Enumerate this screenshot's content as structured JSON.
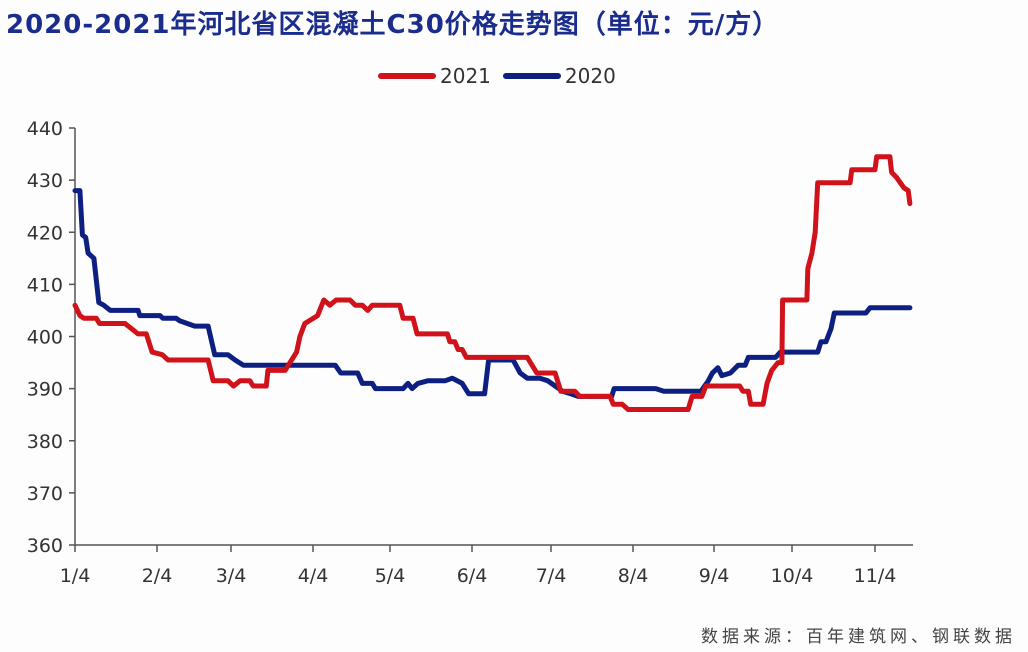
{
  "title": "2020-2021年河北省区混凝土C30价格走势图（单位：元/方）",
  "source_note": "数据来源：百年建筑网、钢联数据",
  "legend": [
    {
      "label": "2021",
      "color": "#d0121a"
    },
    {
      "label": "2020",
      "color": "#0d1f80"
    }
  ],
  "chart_data": {
    "type": "line",
    "title": "2020-2021年河北省区混凝土C30价格走势图（单位：元/方）",
    "xlabel": "",
    "ylabel": "元/方",
    "ylim": [
      360,
      440
    ],
    "yticks": [
      360,
      370,
      380,
      390,
      400,
      410,
      420,
      430,
      440
    ],
    "xticks": [
      "1/4",
      "2/4",
      "3/4",
      "4/4",
      "5/4",
      "6/4",
      "7/4",
      "8/4",
      "9/4",
      "10/4",
      "11/4"
    ],
    "x_note": "x is position in months from 1/4 (0 = 1/4, 10 = 11/4)",
    "xlim": [
      0,
      10.45
    ],
    "grid": false,
    "legend_position": "top",
    "series": [
      {
        "name": "2021",
        "color": "#d0121a",
        "points": [
          [
            0.0,
            406
          ],
          [
            0.06,
            404
          ],
          [
            0.11,
            403.5
          ],
          [
            0.26,
            403.5
          ],
          [
            0.3,
            402.5
          ],
          [
            0.61,
            402.5
          ],
          [
            0.77,
            400.5
          ],
          [
            0.87,
            400.5
          ],
          [
            0.94,
            397
          ],
          [
            1.07,
            396.5
          ],
          [
            1.15,
            395.5
          ],
          [
            1.69,
            395.5
          ],
          [
            1.76,
            391.5
          ],
          [
            1.96,
            391.5
          ],
          [
            2.03,
            390.5
          ],
          [
            2.11,
            391.5
          ],
          [
            2.23,
            391.5
          ],
          [
            2.27,
            390.5
          ],
          [
            2.43,
            390.5
          ],
          [
            2.45,
            393.5
          ],
          [
            2.66,
            393.5
          ],
          [
            2.72,
            395
          ],
          [
            2.8,
            397
          ],
          [
            2.84,
            400
          ],
          [
            2.9,
            402.5
          ],
          [
            3.06,
            404
          ],
          [
            3.14,
            407
          ],
          [
            3.22,
            406
          ],
          [
            3.3,
            407
          ],
          [
            3.48,
            407
          ],
          [
            3.55,
            406
          ],
          [
            3.64,
            406
          ],
          [
            3.71,
            405
          ],
          [
            3.77,
            406
          ],
          [
            4.12,
            406
          ],
          [
            4.16,
            403.5
          ],
          [
            4.28,
            403.5
          ],
          [
            4.33,
            400.5
          ],
          [
            4.7,
            400.5
          ],
          [
            4.73,
            399
          ],
          [
            4.79,
            399
          ],
          [
            4.83,
            397.5
          ],
          [
            4.88,
            397.5
          ],
          [
            4.93,
            396
          ],
          [
            5.7,
            396
          ],
          [
            5.82,
            393
          ],
          [
            6.05,
            393
          ],
          [
            6.12,
            389.5
          ],
          [
            6.29,
            389.5
          ],
          [
            6.35,
            388.5
          ],
          [
            6.72,
            388.5
          ],
          [
            6.76,
            387
          ],
          [
            6.87,
            387
          ],
          [
            6.94,
            386
          ],
          [
            7.68,
            386
          ],
          [
            7.73,
            388.5
          ],
          [
            7.85,
            388.5
          ],
          [
            7.9,
            390.5
          ],
          [
            8.33,
            390.5
          ],
          [
            8.37,
            389.5
          ],
          [
            8.44,
            389.5
          ],
          [
            8.47,
            387
          ],
          [
            8.63,
            387
          ],
          [
            8.68,
            391
          ],
          [
            8.74,
            393.5
          ],
          [
            8.82,
            395
          ],
          [
            8.87,
            395
          ],
          [
            8.88,
            407
          ],
          [
            9.18,
            407
          ],
          [
            9.19,
            413
          ],
          [
            9.24,
            416
          ],
          [
            9.28,
            420
          ],
          [
            9.31,
            429.5
          ],
          [
            9.7,
            429.5
          ],
          [
            9.72,
            432
          ],
          [
            10.0,
            432
          ],
          [
            10.02,
            434.5
          ],
          [
            10.18,
            434.5
          ],
          [
            10.2,
            431.5
          ],
          [
            10.26,
            430.5
          ],
          [
            10.35,
            428.5
          ],
          [
            10.4,
            428
          ],
          [
            10.42,
            425.5
          ]
        ]
      },
      {
        "name": "2020",
        "color": "#0d1f80",
        "points": [
          [
            0.0,
            428
          ],
          [
            0.06,
            428
          ],
          [
            0.09,
            419.5
          ],
          [
            0.13,
            419
          ],
          [
            0.16,
            416
          ],
          [
            0.23,
            415
          ],
          [
            0.29,
            406.5
          ],
          [
            0.35,
            406
          ],
          [
            0.43,
            405
          ],
          [
            0.77,
            405
          ],
          [
            0.79,
            404
          ],
          [
            1.04,
            404
          ],
          [
            1.08,
            403.5
          ],
          [
            1.26,
            403.5
          ],
          [
            1.31,
            403
          ],
          [
            1.51,
            402
          ],
          [
            1.69,
            402
          ],
          [
            1.78,
            396.5
          ],
          [
            1.96,
            396.5
          ],
          [
            2.05,
            395.5
          ],
          [
            2.15,
            394.5
          ],
          [
            2.78,
            394.5
          ],
          [
            3.29,
            394.5
          ],
          [
            3.36,
            393
          ],
          [
            3.58,
            393
          ],
          [
            3.64,
            391
          ],
          [
            3.77,
            391
          ],
          [
            3.81,
            390
          ],
          [
            4.16,
            390
          ],
          [
            4.22,
            391
          ],
          [
            4.27,
            390
          ],
          [
            4.34,
            391
          ],
          [
            4.46,
            391.5
          ],
          [
            4.67,
            391.5
          ],
          [
            4.76,
            392
          ],
          [
            4.88,
            391
          ],
          [
            4.96,
            389
          ],
          [
            5.1,
            389
          ],
          [
            5.16,
            389
          ],
          [
            5.21,
            395.5
          ],
          [
            5.52,
            395.5
          ],
          [
            5.61,
            393
          ],
          [
            5.7,
            392
          ],
          [
            5.86,
            392
          ],
          [
            5.96,
            391.5
          ],
          [
            6.14,
            389.5
          ],
          [
            6.24,
            389
          ],
          [
            6.33,
            388.5
          ],
          [
            6.74,
            388.5
          ],
          [
            6.77,
            390
          ],
          [
            7.28,
            390
          ],
          [
            7.38,
            389.5
          ],
          [
            7.84,
            389.5
          ],
          [
            7.93,
            391.5
          ],
          [
            7.98,
            393
          ],
          [
            8.05,
            394
          ],
          [
            8.1,
            392.5
          ],
          [
            8.21,
            393
          ],
          [
            8.31,
            394.5
          ],
          [
            8.4,
            394.5
          ],
          [
            8.44,
            396
          ],
          [
            8.79,
            396
          ],
          [
            8.85,
            397
          ],
          [
            9.31,
            397
          ],
          [
            9.35,
            399
          ],
          [
            9.41,
            399
          ],
          [
            9.47,
            401.5
          ],
          [
            9.51,
            404.5
          ],
          [
            9.89,
            404.5
          ],
          [
            9.94,
            405.5
          ],
          [
            10.42,
            405.5
          ]
        ]
      }
    ]
  }
}
